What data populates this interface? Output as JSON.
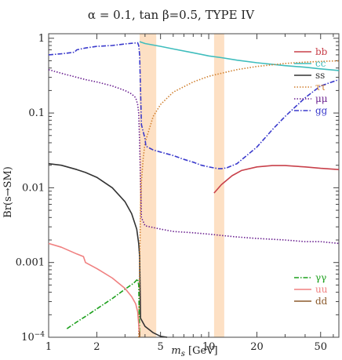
{
  "chart_data": {
    "type": "line",
    "title": "α = 0.1, tan β=0.5, TYPE IV",
    "xlabel_html": "m_s [GeV]",
    "xlabel": {
      "sym": "m",
      "sub": "s",
      "unit": " [GeV]"
    },
    "ylabel": "Br(s→SM)",
    "x_scale": "log",
    "y_scale": "log",
    "xlim": [
      1,
      65
    ],
    "ylim": [
      0.0001,
      1.15
    ],
    "x_ticks": [
      1,
      2,
      5,
      10,
      20,
      50
    ],
    "x_tick_labels": [
      "1",
      "2",
      "5",
      "10",
      "20",
      "50"
    ],
    "y_ticks": [
      0.0001,
      0.001,
      0.01,
      0.1,
      1
    ],
    "y_tick_labels": [
      "10^-4",
      "0.001",
      "0.01",
      "0.1",
      "1"
    ],
    "shaded_bands": [
      {
        "x0": 3.7,
        "x1": 4.7
      },
      {
        "x0": 10.8,
        "x1": 12.5
      }
    ],
    "legend_groups": [
      {
        "position": "top-right",
        "entries": [
          "bb",
          "cc",
          "ss",
          "ττ",
          "μμ",
          "gg"
        ]
      },
      {
        "position": "lower-right",
        "entries": [
          "γγ",
          "uu",
          "dd"
        ]
      }
    ],
    "series": [
      {
        "name": "bb",
        "color": "#c8404a",
        "dash": "solid",
        "x": [
          10.8,
          12,
          14,
          16,
          20,
          25,
          30,
          40,
          50,
          65
        ],
        "y": [
          0.0085,
          0.011,
          0.0145,
          0.017,
          0.019,
          0.0198,
          0.0198,
          0.019,
          0.0182,
          0.0175
        ]
      },
      {
        "name": "cc",
        "color": "#3fbdbd",
        "dash": "solid",
        "x": [
          3.7,
          4,
          5,
          6,
          8,
          10,
          12,
          15,
          20,
          30,
          40,
          50,
          65
        ],
        "y": [
          0.9,
          0.85,
          0.78,
          0.72,
          0.64,
          0.58,
          0.55,
          0.51,
          0.47,
          0.43,
          0.41,
          0.39,
          0.37
        ]
      },
      {
        "name": "ss",
        "color": "#333333",
        "dash": "solid",
        "x": [
          1,
          1.2,
          1.5,
          1.7,
          2,
          2.5,
          3,
          3.3,
          3.55,
          3.65,
          3.7,
          3.75,
          4,
          4.5,
          5,
          5.5
        ],
        "y": [
          0.021,
          0.02,
          0.0175,
          0.016,
          0.0138,
          0.01,
          0.0065,
          0.0045,
          0.0028,
          0.0018,
          0.0012,
          0.00018,
          0.00014,
          0.000115,
          0.000103,
          0.0001
        ]
      },
      {
        "name": "ττ",
        "color": "#d08030",
        "dash": "dotted",
        "x": [
          3.65,
          3.7,
          3.75,
          3.8,
          3.9,
          4,
          4.5,
          5,
          6,
          8,
          10,
          12,
          15,
          20,
          30,
          40,
          50,
          65
        ],
        "y": [
          0.0001,
          0.001,
          0.005,
          0.012,
          0.025,
          0.04,
          0.09,
          0.13,
          0.19,
          0.26,
          0.31,
          0.34,
          0.38,
          0.42,
          0.46,
          0.48,
          0.49,
          0.5
        ]
      },
      {
        "name": "μμ",
        "color": "#6a2090",
        "dash": "dotted",
        "x": [
          1,
          1.2,
          1.5,
          1.7,
          2,
          2.5,
          3,
          3.3,
          3.5,
          3.6,
          3.65,
          3.7,
          3.75,
          3.8,
          4,
          5,
          6,
          8,
          10,
          12,
          15,
          20,
          30,
          40,
          50,
          65
        ],
        "y": [
          0.38,
          0.34,
          0.3,
          0.28,
          0.26,
          0.23,
          0.2,
          0.18,
          0.16,
          0.13,
          0.1,
          0.04,
          0.012,
          0.004,
          0.0031,
          0.0028,
          0.0026,
          0.0025,
          0.0024,
          0.0023,
          0.0022,
          0.0021,
          0.002,
          0.0019,
          0.0019,
          0.0018
        ]
      },
      {
        "name": "gg",
        "color": "#3a3acc",
        "dash": "dashdot",
        "x": [
          1,
          1.2,
          1.45,
          1.5,
          1.7,
          2,
          2.5,
          3,
          3.4,
          3.6,
          3.65,
          3.7,
          3.75,
          3.8,
          4,
          4.05,
          4.5,
          5,
          6,
          7,
          8,
          9,
          10,
          11.5,
          12,
          13,
          15,
          20,
          25,
          30,
          40,
          50,
          65
        ],
        "y": [
          0.6,
          0.62,
          0.65,
          0.7,
          0.74,
          0.78,
          0.8,
          0.84,
          0.86,
          0.87,
          0.8,
          0.6,
          0.2,
          0.07,
          0.045,
          0.036,
          0.032,
          0.03,
          0.027,
          0.024,
          0.022,
          0.02,
          0.019,
          0.018,
          0.018,
          0.0185,
          0.021,
          0.035,
          0.06,
          0.09,
          0.16,
          0.23,
          0.28
        ]
      },
      {
        "name": "γγ",
        "color": "#1ca01c",
        "dash": "dashdot",
        "x": [
          1.3,
          1.5,
          1.7,
          2,
          2.5,
          3,
          3.4,
          3.6,
          3.65,
          3.7
        ],
        "y": [
          0.00013,
          0.00016,
          0.00019,
          0.00024,
          0.00033,
          0.00044,
          0.00053,
          0.0006,
          0.0005,
          0.0001
        ]
      },
      {
        "name": "uu",
        "color": "#f08080",
        "dash": "solid",
        "x": [
          1,
          1.2,
          1.5,
          1.65,
          1.7,
          2,
          2.5,
          3,
          3.3,
          3.5,
          3.6,
          3.65,
          3.7
        ],
        "y": [
          0.0018,
          0.0016,
          0.0013,
          0.0012,
          0.001,
          0.00083,
          0.00062,
          0.00045,
          0.00035,
          0.00028,
          0.00022,
          0.00015,
          0.0001
        ]
      },
      {
        "name": "dd",
        "color": "#8b5a2b",
        "dash": "solid",
        "x": [
          3.7,
          3.7
        ],
        "y": [
          0.0001,
          0.00012
        ]
      }
    ]
  }
}
